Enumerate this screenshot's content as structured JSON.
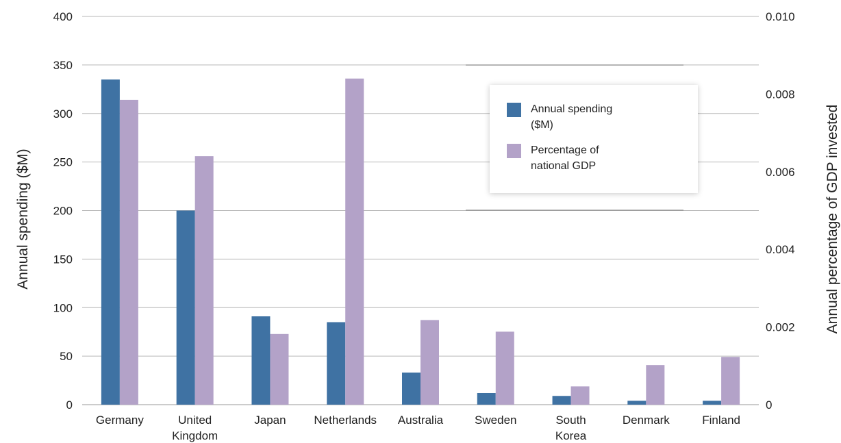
{
  "chart_data": {
    "type": "bar",
    "categories": [
      [
        "Germany"
      ],
      [
        "United",
        "Kingdom"
      ],
      [
        "Japan"
      ],
      [
        "Netherlands"
      ],
      [
        "Australia"
      ],
      [
        "Sweden"
      ],
      [
        "South",
        "Korea"
      ],
      [
        "Denmark"
      ],
      [
        "Finland"
      ]
    ],
    "series": [
      {
        "name": "Annual spending ($M)",
        "axis": "left",
        "color": "#3f72a3",
        "values": [
          335,
          200,
          91,
          85,
          33,
          12,
          9,
          4,
          4
        ]
      },
      {
        "name": "Percentage of national GDP",
        "axis": "right",
        "color": "#b3a2c8",
        "values": [
          0.00785,
          0.0064,
          0.00182,
          0.0084,
          0.00218,
          0.00188,
          0.00047,
          0.00102,
          0.00123
        ]
      }
    ],
    "ylabel_left": "Annual spending ($M)",
    "ylabel_right": "Annual percentage of GDP invested",
    "ylim_left": [
      0,
      400
    ],
    "ylim_right": [
      0,
      0.01
    ],
    "yticks_left": [
      "0",
      "50",
      "100",
      "150",
      "200",
      "250",
      "300",
      "350",
      "400"
    ],
    "yticks_right": [
      "0",
      "0.002",
      "0.004",
      "0.006",
      "0.008",
      "0.010"
    ],
    "legend": {
      "placement": "top-right",
      "entries": [
        [
          "Annual spending",
          "($M)"
        ],
        [
          "Percentage of",
          "national GDP"
        ]
      ]
    },
    "grid": true
  }
}
